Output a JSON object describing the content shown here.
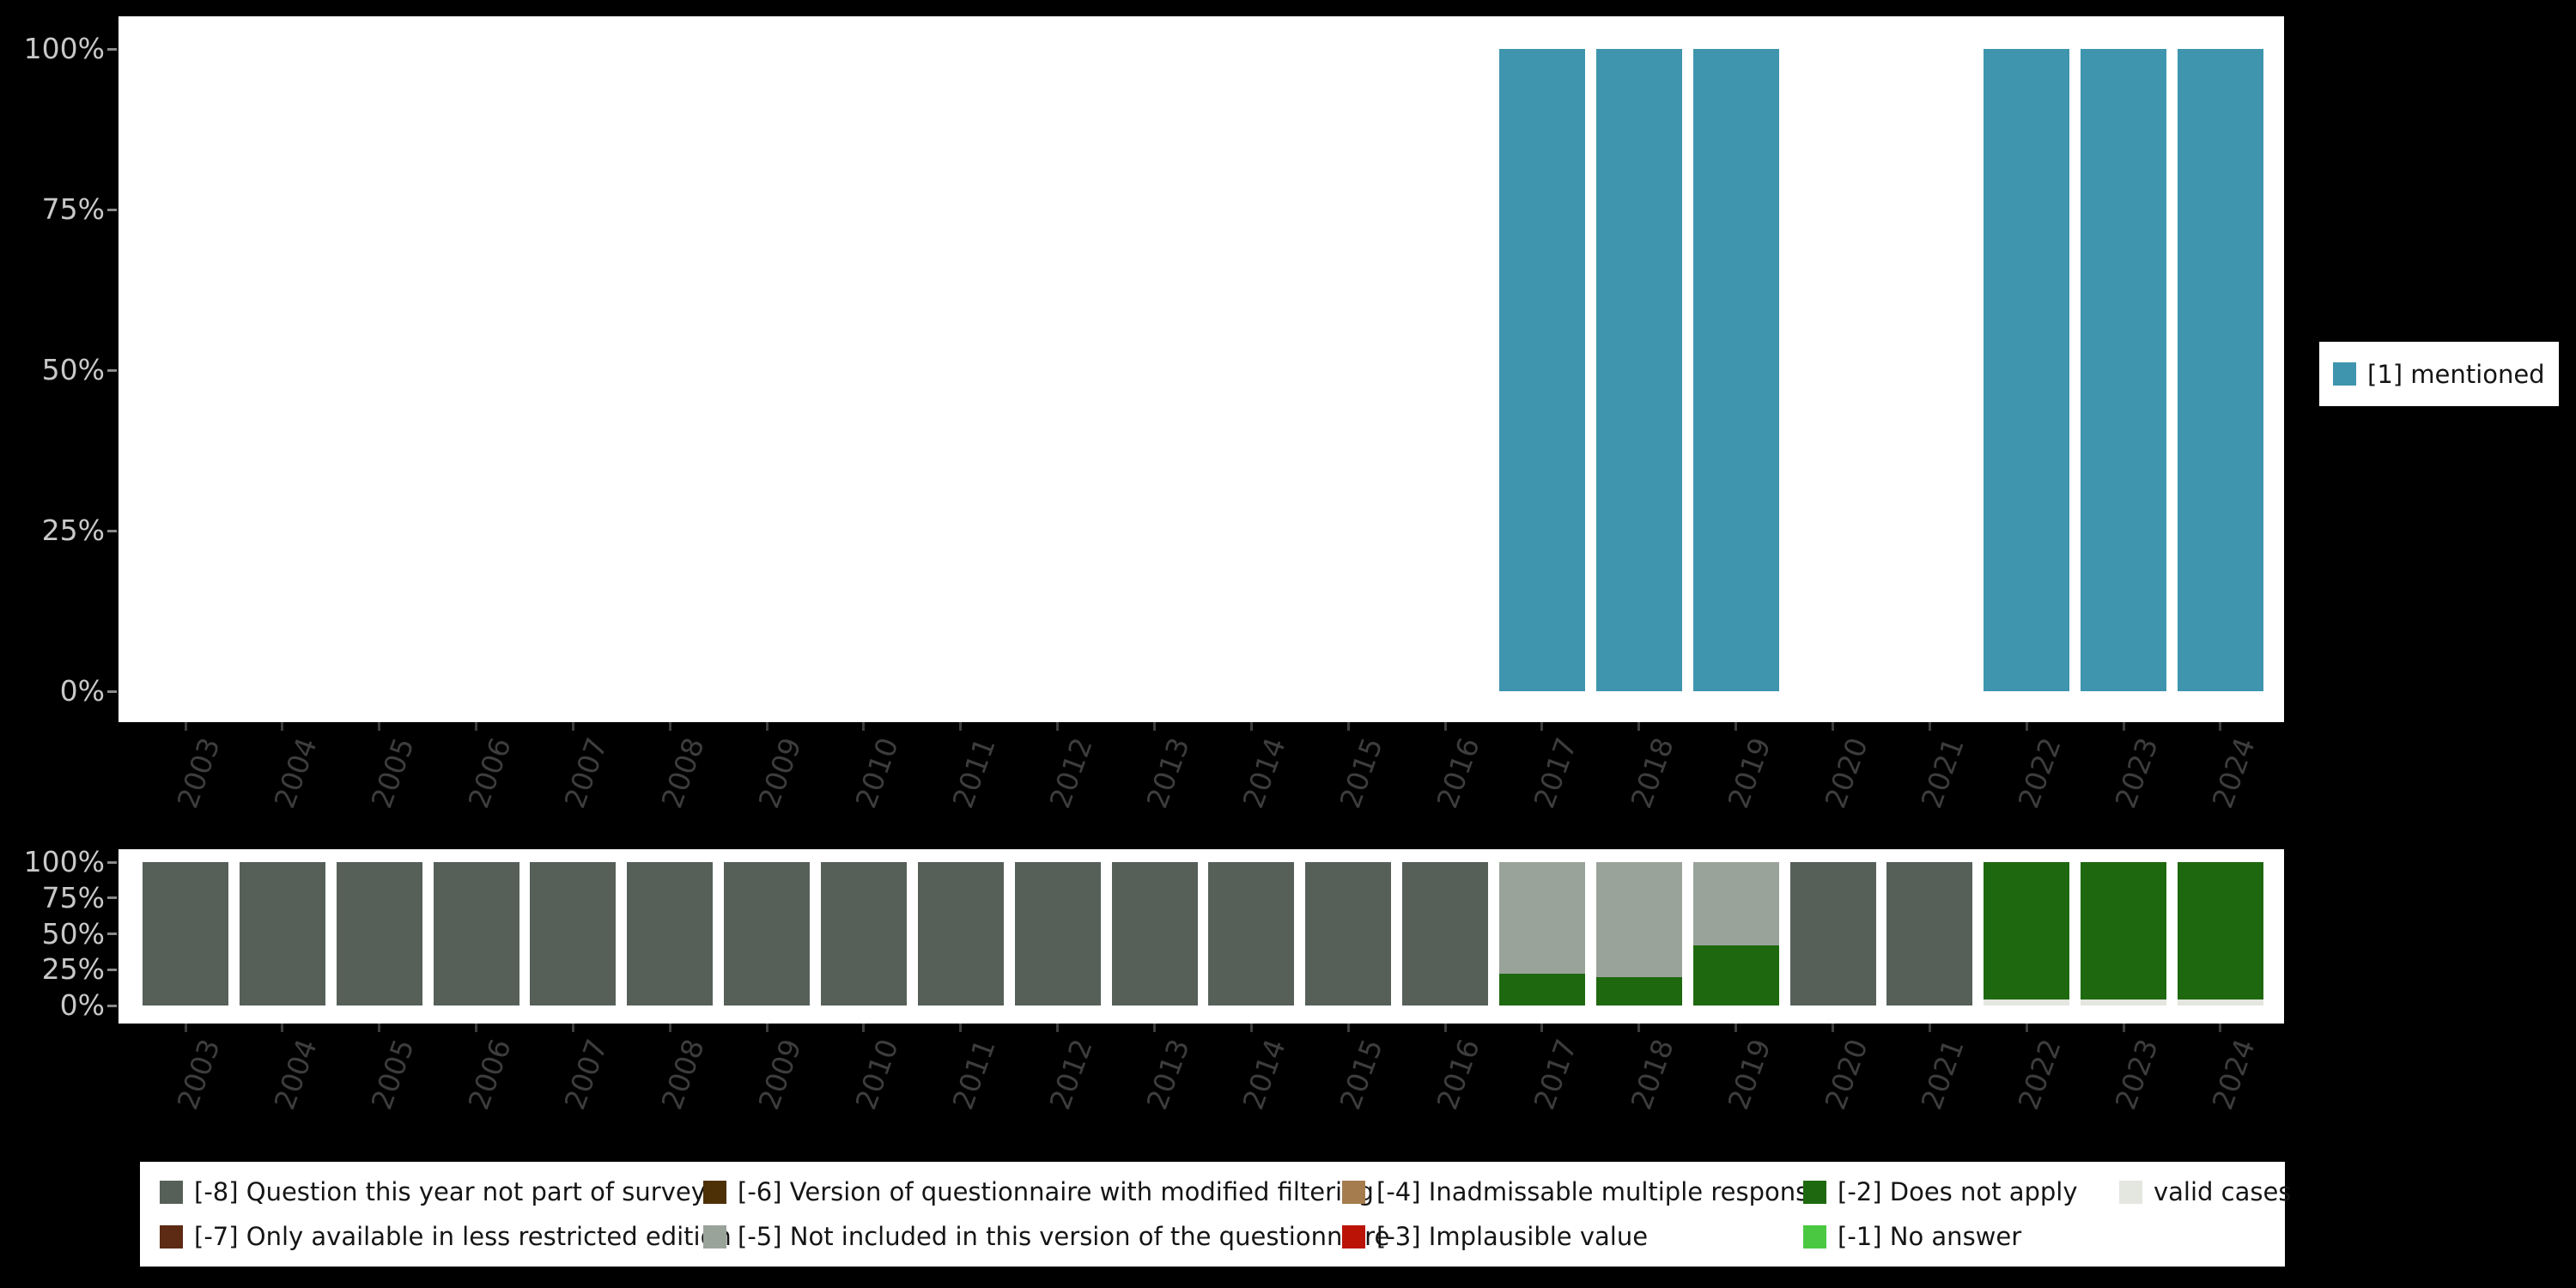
{
  "page": {
    "background": "#000000"
  },
  "colors": {
    "mentioned": "#3e95ad",
    "m8": "#566059",
    "m7": "#5d2a13",
    "m6": "#4e3007",
    "m5": "#9aa39a",
    "m4": "#a57c4e",
    "m3": "#bb1407",
    "m2": "#1e690f",
    "m1": "#4ac841",
    "valid": "#e4e6e0"
  },
  "axes": {
    "y_ticks": [
      "100%",
      "75%",
      "50%",
      "25%",
      "0%"
    ],
    "y_tick_values": [
      100,
      75,
      50,
      25,
      0
    ],
    "years": [
      "2003",
      "2004",
      "2005",
      "2006",
      "2007",
      "2008",
      "2009",
      "2010",
      "2011",
      "2012",
      "2013",
      "2014",
      "2015",
      "2016",
      "2017",
      "2018",
      "2019",
      "2020",
      "2021",
      "2022",
      "2023",
      "2024"
    ]
  },
  "chart_data": [
    {
      "type": "bar",
      "title": "",
      "xlabel": "",
      "ylabel": "",
      "ylim": [
        0,
        100
      ],
      "grid": false,
      "legend_position": "right",
      "categories": [
        "2003",
        "2004",
        "2005",
        "2006",
        "2007",
        "2008",
        "2009",
        "2010",
        "2011",
        "2012",
        "2013",
        "2014",
        "2015",
        "2016",
        "2017",
        "2018",
        "2019",
        "2020",
        "2021",
        "2022",
        "2023",
        "2024"
      ],
      "series": [
        {
          "name": "[1] mentioned",
          "color": "mentioned",
          "values": [
            0,
            0,
            0,
            0,
            0,
            0,
            0,
            0,
            0,
            0,
            0,
            0,
            0,
            0,
            100,
            100,
            100,
            0,
            0,
            100,
            100,
            100
          ]
        }
      ]
    },
    {
      "type": "bar",
      "stacked": true,
      "stack_order": "bottom-to-top",
      "title": "",
      "xlabel": "",
      "ylabel": "",
      "ylim": [
        0,
        100
      ],
      "grid": false,
      "legend_position": "bottom",
      "categories": [
        "2003",
        "2004",
        "2005",
        "2006",
        "2007",
        "2008",
        "2009",
        "2010",
        "2011",
        "2012",
        "2013",
        "2014",
        "2015",
        "2016",
        "2017",
        "2018",
        "2019",
        "2020",
        "2021",
        "2022",
        "2023",
        "2024"
      ],
      "series": [
        {
          "name": "valid cases",
          "color": "valid",
          "values": [
            0,
            0,
            0,
            0,
            0,
            0,
            0,
            0,
            0,
            0,
            0,
            0,
            0,
            0,
            0,
            0,
            0,
            0,
            0,
            4,
            4,
            4
          ]
        },
        {
          "name": "[-1] No answer",
          "color": "m1",
          "values": [
            0,
            0,
            0,
            0,
            0,
            0,
            0,
            0,
            0,
            0,
            0,
            0,
            0,
            0,
            0,
            0,
            0,
            0,
            0,
            0,
            0,
            0
          ]
        },
        {
          "name": "[-2] Does not apply",
          "color": "m2",
          "values": [
            0,
            0,
            0,
            0,
            0,
            0,
            0,
            0,
            0,
            0,
            0,
            0,
            0,
            0,
            22,
            20,
            42,
            0,
            0,
            96,
            96,
            96
          ]
        },
        {
          "name": "[-3] Implausible value",
          "color": "m3",
          "values": [
            0,
            0,
            0,
            0,
            0,
            0,
            0,
            0,
            0,
            0,
            0,
            0,
            0,
            0,
            0,
            0,
            0,
            0,
            0,
            0,
            0,
            0
          ]
        },
        {
          "name": "[-4] Inadmissable multiple response",
          "color": "m4",
          "values": [
            0,
            0,
            0,
            0,
            0,
            0,
            0,
            0,
            0,
            0,
            0,
            0,
            0,
            0,
            0,
            0,
            0,
            0,
            0,
            0,
            0,
            0
          ]
        },
        {
          "name": "[-5] Not included in this version of the questionnaire",
          "color": "m5",
          "values": [
            0,
            0,
            0,
            0,
            0,
            0,
            0,
            0,
            0,
            0,
            0,
            0,
            0,
            0,
            78,
            80,
            58,
            0,
            0,
            0,
            0,
            0
          ]
        },
        {
          "name": "[-6] Version of questionnaire with modified filtering",
          "color": "m6",
          "values": [
            0,
            0,
            0,
            0,
            0,
            0,
            0,
            0,
            0,
            0,
            0,
            0,
            0,
            0,
            0,
            0,
            0,
            0,
            0,
            0,
            0,
            0
          ]
        },
        {
          "name": "[-7] Only available in less restricted edition",
          "color": "m7",
          "values": [
            0,
            0,
            0,
            0,
            0,
            0,
            0,
            0,
            0,
            0,
            0,
            0,
            0,
            0,
            0,
            0,
            0,
            0,
            0,
            0,
            0,
            0
          ]
        },
        {
          "name": "[-8] Question this year not part of survey",
          "color": "m8",
          "values": [
            100,
            100,
            100,
            100,
            100,
            100,
            100,
            100,
            100,
            100,
            100,
            100,
            100,
            100,
            0,
            0,
            0,
            100,
            100,
            0,
            0,
            0
          ]
        }
      ]
    }
  ],
  "legend_right": {
    "items": [
      {
        "label": "[1] mentioned",
        "color": "mentioned"
      }
    ]
  },
  "legend_bottom": {
    "rows": [
      [
        {
          "label": "[-8] Question this year not part of survey",
          "color": "m8"
        },
        {
          "label": "[-6] Version of questionnaire with modified filtering",
          "color": "m6"
        },
        {
          "label": "[-4] Inadmissable multiple response",
          "color": "m4"
        },
        {
          "label": "[-2] Does not apply",
          "color": "m2"
        },
        {
          "label": "valid cases",
          "color": "valid"
        }
      ],
      [
        {
          "label": "[-7] Only available in less restricted edition",
          "color": "m7"
        },
        {
          "label": "[-5] Not included in this version of the questionnaire",
          "color": "m5"
        },
        {
          "label": "[-3] Implausible value",
          "color": "m3"
        },
        {
          "label": "[-1] No answer",
          "color": "m1"
        }
      ]
    ]
  }
}
